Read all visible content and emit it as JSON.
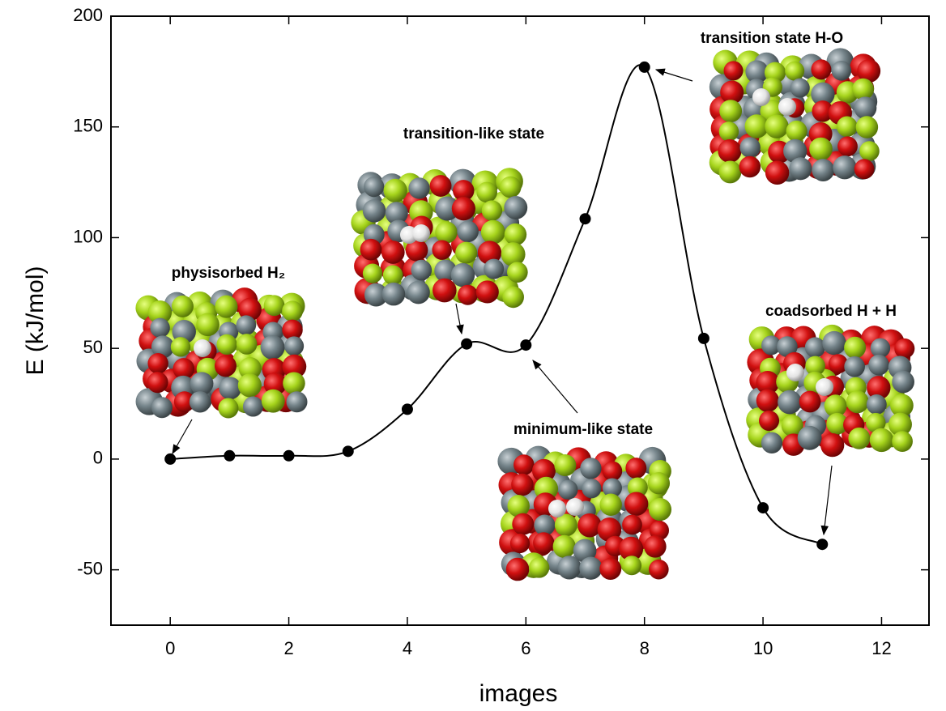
{
  "chart_data": {
    "type": "line",
    "x_label": "images",
    "y_label": "E (kJ/mol)",
    "x": [
      0,
      1,
      2,
      3,
      4,
      5,
      6,
      7,
      8,
      9,
      10,
      11
    ],
    "series": [
      {
        "color": "#000000",
        "values": [
          0,
          1.5,
          1.5,
          3.5,
          22.5,
          52,
          51.5,
          108.5,
          177,
          54.5,
          -22,
          -38.5
        ]
      }
    ],
    "xlim": [
      -1,
      12.8
    ],
    "xticks": [
      0,
      2,
      4,
      6,
      8,
      10,
      12
    ],
    "ylim": [
      -75,
      200
    ],
    "yticks": [
      -50,
      0,
      50,
      100,
      150,
      200
    ],
    "grid": false,
    "smooth": true,
    "annotations": [
      "physisorbed H₂",
      "transition-like state",
      "transition state H-O",
      "minimum-like state",
      "coadsorbed H + H"
    ]
  }
}
